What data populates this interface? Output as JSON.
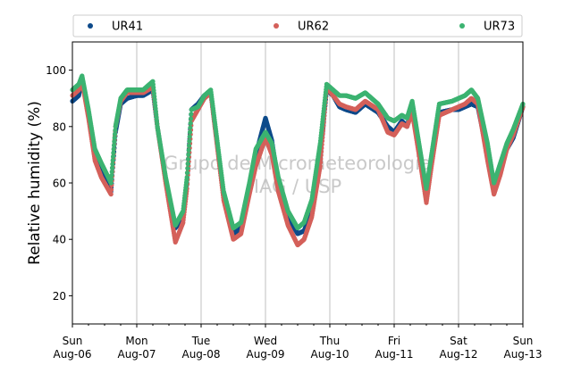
{
  "chart_data": {
    "type": "scatter",
    "title": "",
    "ylabel": "Relative humidity (%)",
    "xlabel": "",
    "ylim": [
      10,
      110
    ],
    "yticks": [
      20,
      40,
      60,
      80,
      100
    ],
    "xlim": [
      0,
      7
    ],
    "xticks": [
      {
        "x": 0,
        "day": "Sun",
        "date": "Aug-06"
      },
      {
        "x": 1,
        "day": "Mon",
        "date": "Aug-07"
      },
      {
        "x": 2,
        "day": "Tue",
        "date": "Aug-08"
      },
      {
        "x": 3,
        "day": "Wed",
        "date": "Aug-09"
      },
      {
        "x": 4,
        "day": "Thu",
        "date": "Aug-10"
      },
      {
        "x": 5,
        "day": "Fri",
        "date": "Aug-11"
      },
      {
        "x": 6,
        "day": "Sat",
        "date": "Aug-12"
      },
      {
        "x": 7,
        "day": "Sun",
        "date": "Aug-13"
      }
    ],
    "grid": "vertical",
    "legend_position": "top",
    "watermark": [
      "Grupo de Micrometeorologia",
      "IAG / USP"
    ],
    "x_units": "days since Aug-06 00:00",
    "series": [
      {
        "name": "UR41",
        "color": "#0d4a8a",
        "x": [
          0.0,
          0.1,
          0.15,
          0.25,
          0.35,
          0.45,
          0.6,
          0.67,
          0.75,
          0.85,
          1.0,
          1.1,
          1.25,
          1.32,
          1.45,
          1.6,
          1.72,
          1.78,
          1.85,
          1.95,
          2.05,
          2.15,
          2.35,
          2.5,
          2.62,
          2.75,
          2.85,
          3.0,
          3.1,
          3.2,
          3.35,
          3.5,
          3.6,
          3.72,
          3.85,
          3.95,
          4.05,
          4.15,
          4.25,
          4.4,
          4.55,
          4.75,
          4.9,
          5.0,
          5.12,
          5.2,
          5.28,
          5.4,
          5.5,
          5.58,
          5.7,
          5.9,
          6.0,
          6.1,
          6.2,
          6.3,
          6.45,
          6.55,
          6.65,
          6.75,
          6.85,
          7.0
        ],
        "y": [
          89,
          91,
          97,
          85,
          70,
          65,
          57,
          78,
          88,
          90,
          91,
          91,
          93,
          80,
          61,
          44,
          48,
          60,
          86,
          88,
          91,
          92,
          55,
          42,
          44,
          58,
          70,
          83,
          75,
          60,
          48,
          42,
          43,
          50,
          68,
          93,
          91,
          87,
          86,
          85,
          88,
          85,
          80,
          78,
          82,
          80,
          87,
          70,
          55,
          68,
          85,
          86,
          86,
          87,
          88,
          87,
          70,
          58,
          65,
          72,
          76,
          87
        ]
      },
      {
        "name": "UR62",
        "color": "#d4605a",
        "x": [
          0.0,
          0.1,
          0.15,
          0.25,
          0.35,
          0.45,
          0.6,
          0.67,
          0.75,
          0.85,
          1.0,
          1.1,
          1.25,
          1.32,
          1.45,
          1.6,
          1.72,
          1.78,
          1.85,
          1.95,
          2.05,
          2.15,
          2.35,
          2.5,
          2.62,
          2.75,
          2.85,
          3.0,
          3.1,
          3.2,
          3.35,
          3.5,
          3.6,
          3.72,
          3.85,
          3.95,
          4.05,
          4.15,
          4.25,
          4.4,
          4.55,
          4.75,
          4.9,
          5.0,
          5.12,
          5.2,
          5.28,
          5.4,
          5.5,
          5.58,
          5.7,
          5.9,
          6.0,
          6.1,
          6.2,
          6.3,
          6.45,
          6.55,
          6.65,
          6.75,
          6.85,
          7.0
        ],
        "y": [
          91,
          93,
          96,
          83,
          68,
          62,
          56,
          80,
          89,
          92,
          92,
          92,
          94,
          80,
          60,
          39,
          46,
          58,
          82,
          86,
          90,
          92,
          54,
          40,
          42,
          56,
          66,
          76,
          70,
          57,
          45,
          38,
          40,
          48,
          66,
          94,
          91,
          88,
          87,
          86,
          89,
          86,
          78,
          77,
          81,
          80,
          85,
          68,
          53,
          66,
          84,
          86,
          87,
          88,
          90,
          88,
          68,
          56,
          63,
          72,
          77,
          87
        ]
      },
      {
        "name": "UR73",
        "color": "#3cb371",
        "x": [
          0.0,
          0.1,
          0.15,
          0.25,
          0.35,
          0.45,
          0.6,
          0.67,
          0.75,
          0.85,
          1.0,
          1.1,
          1.25,
          1.32,
          1.45,
          1.6,
          1.72,
          1.78,
          1.85,
          1.95,
          2.05,
          2.15,
          2.35,
          2.5,
          2.62,
          2.75,
          2.85,
          3.0,
          3.1,
          3.2,
          3.35,
          3.5,
          3.6,
          3.72,
          3.85,
          3.95,
          4.05,
          4.15,
          4.25,
          4.4,
          4.55,
          4.75,
          4.9,
          5.0,
          5.12,
          5.2,
          5.28,
          5.4,
          5.5,
          5.58,
          5.7,
          5.9,
          6.0,
          6.1,
          6.2,
          6.3,
          6.45,
          6.55,
          6.65,
          6.75,
          6.85,
          7.0
        ],
        "y": [
          93,
          95,
          98,
          86,
          72,
          67,
          60,
          80,
          90,
          93,
          93,
          93,
          96,
          80,
          62,
          45,
          50,
          62,
          86,
          87,
          91,
          93,
          57,
          44,
          46,
          60,
          72,
          78,
          74,
          62,
          50,
          44,
          46,
          54,
          74,
          95,
          93,
          91,
          91,
          90,
          92,
          88,
          83,
          82,
          84,
          83,
          89,
          72,
          58,
          70,
          88,
          89,
          90,
          91,
          93,
          90,
          74,
          60,
          67,
          74,
          79,
          88
        ]
      }
    ]
  }
}
